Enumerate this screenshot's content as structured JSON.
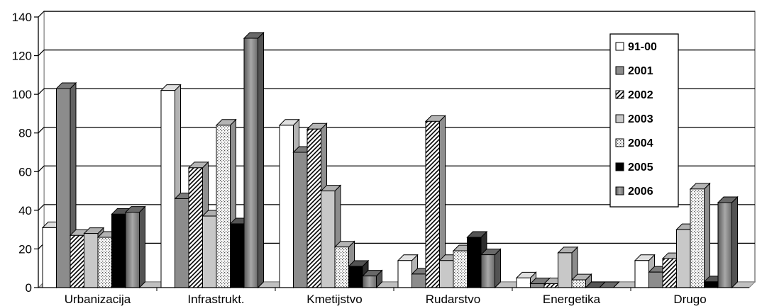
{
  "chart_data": {
    "type": "bar",
    "title": "",
    "xlabel": "",
    "ylabel": "",
    "ylim": [
      0,
      140
    ],
    "yticks": [
      0,
      20,
      40,
      60,
      80,
      100,
      120,
      140
    ],
    "grid": true,
    "legend_position": "top-right",
    "categories": [
      "Urbanizacija",
      "Infrastrukt.",
      "Kmetijstvo",
      "Rudarstvo",
      "Energetika",
      "Drugo"
    ],
    "series": [
      {
        "name": "91-00",
        "values": [
          31,
          102,
          84,
          14,
          5,
          14
        ],
        "color": "#ffffff",
        "pattern": "solid"
      },
      {
        "name": "2001",
        "values": [
          103,
          46,
          70,
          7,
          2,
          8
        ],
        "color": "#8c8c8c",
        "pattern": "solid"
      },
      {
        "name": "2002",
        "values": [
          27,
          62,
          82,
          86,
          2,
          15
        ],
        "color": "#cfcfcf",
        "pattern": "hatch"
      },
      {
        "name": "2003",
        "values": [
          28,
          37,
          50,
          14,
          18,
          30
        ],
        "color": "#c8c8c8",
        "pattern": "solid"
      },
      {
        "name": "2004",
        "values": [
          26,
          84,
          21,
          19,
          4,
          51
        ],
        "color": "#f2f2f2",
        "pattern": "dots"
      },
      {
        "name": "2005",
        "values": [
          38,
          33,
          11,
          26,
          0,
          3
        ],
        "color": "#000000",
        "pattern": "solid"
      },
      {
        "name": "2006",
        "values": [
          39,
          129,
          6,
          17,
          0,
          44
        ],
        "color": "#9a9a9a",
        "pattern": "gradient"
      }
    ]
  }
}
